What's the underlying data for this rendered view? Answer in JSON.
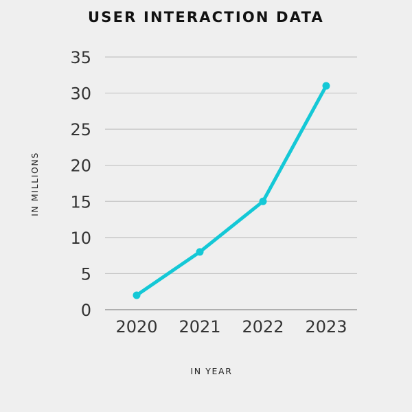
{
  "chart_data": {
    "type": "line",
    "title": "USER INTERACTION DATA",
    "xlabel": "IN YEAR",
    "ylabel": "IN MILLIONS",
    "categories": [
      "2020",
      "2021",
      "2022",
      "2023"
    ],
    "series": [
      {
        "values": [
          2,
          8,
          15,
          31
        ],
        "color": "#14c8d6"
      }
    ],
    "ylim": [
      0,
      35
    ],
    "yticks": [
      0,
      5,
      10,
      15,
      20,
      25,
      30,
      35
    ],
    "grid": true,
    "legend": "none"
  }
}
